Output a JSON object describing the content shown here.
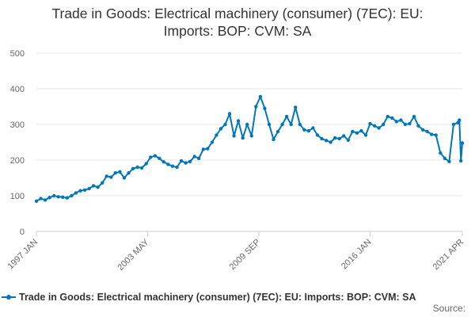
{
  "title_lines": [
    "Trade in Goods: Electrical machinery (consumer) (7EC): EU:",
    "Imports: BOP: CVM: SA"
  ],
  "source_label": "Source:",
  "colors": {
    "series": "#0077bb",
    "grid": "#e6e6e6",
    "axis_text": "#666666",
    "title": "#333333"
  },
  "chart_data": {
    "type": "line",
    "title": "Trade in Goods: Electrical machinery (consumer) (7EC): EU: Imports: BOP: CVM: SA",
    "xlabel": "",
    "ylabel": "",
    "ylim": [
      0,
      500
    ],
    "yticks": [
      0,
      100,
      200,
      300,
      400,
      500
    ],
    "xlim": [
      "1997 JAN",
      "2021 APR"
    ],
    "xticks": [
      "1997 JAN",
      "2003 MAY",
      "2009 SEP",
      "2016 JAN",
      "2021 APR"
    ],
    "grid": "horizontal",
    "legend": "bottom",
    "markers": true,
    "series": [
      {
        "name": "Trade in Goods: Electrical machinery (consumer) (7EC): EU: Imports: BOP: CVM: SA",
        "points": [
          [
            "1997 JAN",
            85
          ],
          [
            "1997 APR",
            92
          ],
          [
            "1997 JUL",
            88
          ],
          [
            "1997 OCT",
            95
          ],
          [
            "1998 JAN",
            100
          ],
          [
            "1998 APR",
            97
          ],
          [
            "1998 JUL",
            96
          ],
          [
            "1998 OCT",
            94
          ],
          [
            "1999 JAN",
            100
          ],
          [
            "1999 APR",
            108
          ],
          [
            "1999 JUL",
            114
          ],
          [
            "1999 OCT",
            116
          ],
          [
            "2000 JAN",
            120
          ],
          [
            "2000 APR",
            128
          ],
          [
            "2000 JUL",
            124
          ],
          [
            "2000 OCT",
            136
          ],
          [
            "2001 JAN",
            155
          ],
          [
            "2001 APR",
            152
          ],
          [
            "2001 JUL",
            164
          ],
          [
            "2001 OCT",
            167
          ],
          [
            "2002 JAN",
            150
          ],
          [
            "2002 APR",
            164
          ],
          [
            "2002 JUL",
            176
          ],
          [
            "2002 OCT",
            180
          ],
          [
            "2003 JAN",
            178
          ],
          [
            "2003 APR",
            190
          ],
          [
            "2003 JUL",
            208
          ],
          [
            "2003 OCT",
            212
          ],
          [
            "2004 JAN",
            205
          ],
          [
            "2004 APR",
            195
          ],
          [
            "2004 JUL",
            188
          ],
          [
            "2004 OCT",
            183
          ],
          [
            "2005 JAN",
            180
          ],
          [
            "2005 APR",
            198
          ],
          [
            "2005 JUL",
            192
          ],
          [
            "2005 OCT",
            196
          ],
          [
            "2006 JAN",
            210
          ],
          [
            "2006 APR",
            205
          ],
          [
            "2006 JUL",
            230
          ],
          [
            "2006 OCT",
            232
          ],
          [
            "2007 JAN",
            250
          ],
          [
            "2007 APR",
            270
          ],
          [
            "2007 JUL",
            288
          ],
          [
            "2007 OCT",
            300
          ],
          [
            "2008 JAN",
            330
          ],
          [
            "2008 APR",
            268
          ],
          [
            "2008 JUL",
            310
          ],
          [
            "2008 OCT",
            262
          ],
          [
            "2009 JAN",
            300
          ],
          [
            "2009 APR",
            268
          ],
          [
            "2009 JUL",
            350
          ],
          [
            "2009 OCT",
            378
          ],
          [
            "2010 JAN",
            345
          ],
          [
            "2010 APR",
            300
          ],
          [
            "2010 JUL",
            258
          ],
          [
            "2010 OCT",
            280
          ],
          [
            "2011 JAN",
            300
          ],
          [
            "2011 APR",
            322
          ],
          [
            "2011 JUL",
            300
          ],
          [
            "2011 OCT",
            348
          ],
          [
            "2012 JAN",
            300
          ],
          [
            "2012 APR",
            285
          ],
          [
            "2012 JUL",
            282
          ],
          [
            "2012 OCT",
            290
          ],
          [
            "2013 JAN",
            270
          ],
          [
            "2013 APR",
            260
          ],
          [
            "2013 JUL",
            255
          ],
          [
            "2013 OCT",
            250
          ],
          [
            "2014 JAN",
            262
          ],
          [
            "2014 APR",
            260
          ],
          [
            "2014 JUL",
            268
          ],
          [
            "2014 OCT",
            256
          ],
          [
            "2015 JAN",
            280
          ],
          [
            "2015 APR",
            276
          ],
          [
            "2015 JUL",
            282
          ],
          [
            "2015 OCT",
            270
          ],
          [
            "2016 JAN",
            302
          ],
          [
            "2016 APR",
            296
          ],
          [
            "2016 JUL",
            290
          ],
          [
            "2016 OCT",
            300
          ],
          [
            "2017 JAN",
            322
          ],
          [
            "2017 APR",
            318
          ],
          [
            "2017 JUL",
            308
          ],
          [
            "2017 OCT",
            312
          ],
          [
            "2018 JAN",
            300
          ],
          [
            "2018 APR",
            302
          ],
          [
            "2018 JUL",
            322
          ],
          [
            "2018 OCT",
            296
          ],
          [
            "2019 JAN",
            285
          ],
          [
            "2019 APR",
            280
          ],
          [
            "2019 JUL",
            272
          ],
          [
            "2019 OCT",
            270
          ],
          [
            "2020 JAN",
            220
          ],
          [
            "2020 APR",
            205
          ],
          [
            "2020 JUL",
            196
          ],
          [
            "2020 OCT",
            300
          ],
          [
            "2021 JAN",
            305
          ],
          [
            "2021 FEB",
            312
          ],
          [
            "2021 MAR",
            198
          ],
          [
            "2021 APR",
            248
          ]
        ]
      }
    ]
  }
}
